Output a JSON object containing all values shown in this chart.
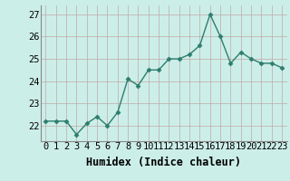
{
  "x": [
    0,
    1,
    2,
    3,
    4,
    5,
    6,
    7,
    8,
    9,
    10,
    11,
    12,
    13,
    14,
    15,
    16,
    17,
    18,
    19,
    20,
    21,
    22,
    23
  ],
  "y": [
    22.2,
    22.2,
    22.2,
    21.6,
    22.1,
    22.4,
    22.0,
    22.6,
    24.1,
    23.8,
    24.5,
    24.5,
    25.0,
    25.0,
    25.2,
    25.6,
    27.0,
    26.0,
    24.8,
    25.3,
    25.0,
    24.8,
    24.8,
    24.6
  ],
  "line_color": "#2d7d6e",
  "marker": "D",
  "marker_size": 2.5,
  "bg_color": "#cceee8",
  "grid_color": "#c0a8a8",
  "xlabel": "Humidex (Indice chaleur)",
  "xlim": [
    -0.5,
    23.5
  ],
  "ylim": [
    21.3,
    27.4
  ],
  "yticks": [
    22,
    23,
    24,
    25,
    26,
    27
  ],
  "xticks": [
    0,
    1,
    2,
    3,
    4,
    5,
    6,
    7,
    8,
    9,
    10,
    11,
    12,
    13,
    14,
    15,
    16,
    17,
    18,
    19,
    20,
    21,
    22,
    23
  ],
  "tick_fontsize": 7.5,
  "xlabel_fontsize": 8.5,
  "line_width": 1.0
}
